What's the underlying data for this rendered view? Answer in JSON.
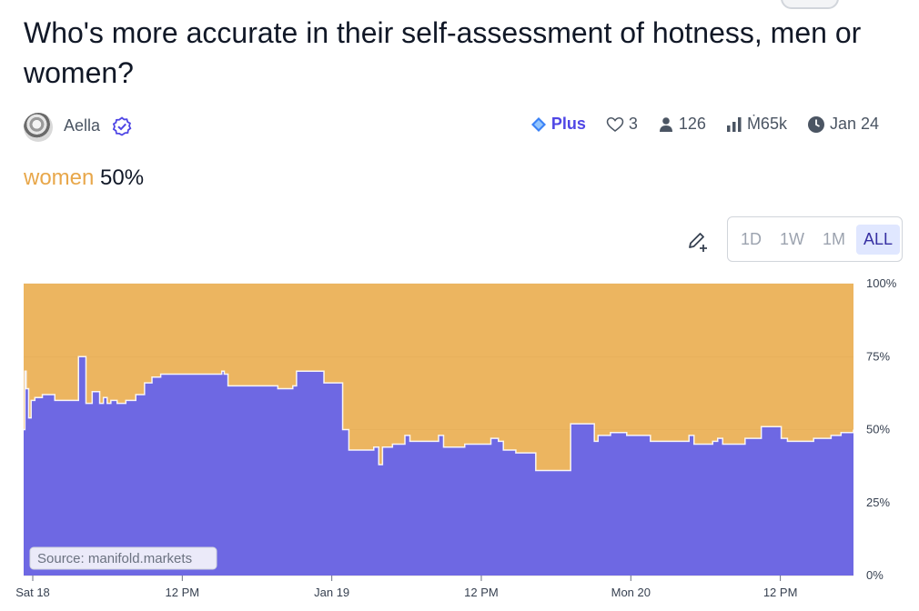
{
  "market": {
    "title": "Who's more accurate in their self-assessment of hotness, men or women?",
    "author": "Aella",
    "plus_label": "Plus",
    "likes": "3",
    "traders": "126",
    "volume": "Ṁ65k",
    "close_date": "Jan 24",
    "answer": "women",
    "probability": "50%"
  },
  "controls": {
    "ranges": [
      "1D",
      "1W",
      "1M",
      "ALL"
    ],
    "active_range": "ALL"
  },
  "colors": {
    "answer_area": "#6e68e3",
    "other_area": "#ecb560",
    "accent": "#4f46e5"
  },
  "icons": [
    "avatar",
    "verified-icon",
    "plus-diamond-icon",
    "heart-icon",
    "user-icon",
    "bar-chart-icon",
    "clock-icon",
    "pencil-plus-icon"
  ],
  "chart_data": {
    "type": "area",
    "title": "",
    "xlabel": "",
    "ylabel": "",
    "ylim": [
      0,
      100
    ],
    "y_ticks": [
      "0%",
      "25%",
      "50%",
      "75%",
      "100%"
    ],
    "x_ticks": [
      {
        "label": "Sat 18",
        "t": 0
      },
      {
        "label": "12 PM",
        "t": 12
      },
      {
        "label": "Jan 19",
        "t": 24
      },
      {
        "label": "12 PM",
        "t": 36
      },
      {
        "label": "Mon 20",
        "t": 48
      },
      {
        "label": "12 PM",
        "t": 60
      }
    ],
    "x_unit": "hours since Sat 18 00:00",
    "series": [
      {
        "name": "women",
        "x": [
          0,
          0.1,
          0.2,
          0.4,
          0.6,
          0.9,
          1.5,
          2.5,
          4.4,
          5,
          5.5,
          6.1,
          6.4,
          6.7,
          7,
          7.5,
          8.2,
          9,
          9.7,
          10.3,
          11,
          11.4,
          12.3,
          13,
          15.9,
          16.1,
          16.4,
          20.4,
          21.6,
          21.9,
          24.1,
          25.6,
          26.1,
          28.1,
          28.5,
          28.8,
          29.1,
          29.6,
          30.6,
          31,
          33.3,
          33.7,
          35.4,
          37.5,
          38.1,
          38.5,
          39.5,
          41.1,
          41.5,
          43.9,
          45.8,
          46.1,
          47.1,
          47.3,
          48.4,
          50.3,
          53.4,
          53.8,
          55.3,
          55.7,
          56.1,
          57.9,
          59.2,
          60.5,
          60.8,
          61.3,
          63.4,
          64.8,
          65.6,
          66.6
        ],
        "values": [
          50,
          70,
          64,
          54,
          60,
          61,
          62,
          60,
          75,
          59,
          63,
          59,
          61,
          59,
          60,
          59,
          60,
          62,
          66,
          68,
          69,
          69,
          69,
          69,
          70,
          69,
          65,
          64,
          65,
          70,
          66,
          50,
          43,
          44,
          38,
          44,
          44,
          45,
          48,
          46,
          48,
          44,
          45,
          47,
          46,
          43,
          42,
          36,
          36,
          52,
          46,
          48,
          49,
          49,
          48,
          46,
          48,
          45,
          46,
          47,
          45,
          47,
          51,
          51,
          47,
          46,
          47,
          48,
          49,
          50
        ]
      }
    ]
  },
  "watermark": "Source: manifold.markets"
}
